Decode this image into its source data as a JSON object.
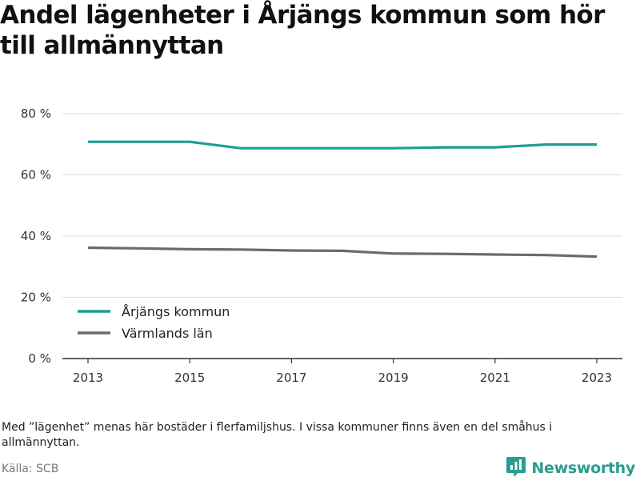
{
  "chart_data": {
    "type": "line",
    "title": "Andel lägenheter i Årjängs kommun som hör till allmännyttan",
    "x": [
      2013,
      2014,
      2015,
      2016,
      2017,
      2018,
      2019,
      2020,
      2021,
      2022,
      2023
    ],
    "x_ticks": [
      "2013",
      "2015",
      "2017",
      "2019",
      "2021",
      "2023"
    ],
    "y_ticks": [
      "0 %",
      "20 %",
      "40 %",
      "60 %",
      "80 %"
    ],
    "ylim": [
      0,
      80
    ],
    "grid": true,
    "legend_position": "bottom-left",
    "series": [
      {
        "name": "Årjängs kommun",
        "color": "#1a9e96",
        "values": [
          70.8,
          70.8,
          70.8,
          68.7,
          68.7,
          68.7,
          68.7,
          69.0,
          69.0,
          69.9,
          69.9
        ]
      },
      {
        "name": "Värmlands län",
        "color": "#6b6b6b",
        "values": [
          36.2,
          36.0,
          35.7,
          35.6,
          35.3,
          35.2,
          34.3,
          34.2,
          34.0,
          33.8,
          33.3
        ]
      }
    ]
  },
  "note": "Med ”lägenhet” menas här bostäder i flerfamiljshus. I vissa kommuner finns även en del småhus i allmännyttan.",
  "source": "Källa: SCB",
  "brand": {
    "name": "Newsworthy",
    "icon": "newsworthy-logo-icon",
    "color": "#2a9d8f"
  }
}
